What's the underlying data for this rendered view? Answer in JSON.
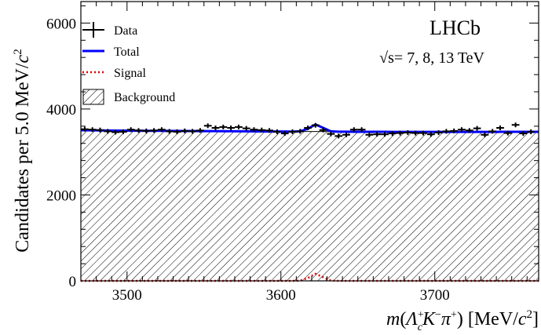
{
  "chart_data": {
    "type": "line",
    "title": "",
    "xlabel": "m(Λc+K−π+) [MeV/c²]",
    "ylabel": "Candidates per 5.0 MeV/c²",
    "xlim": [
      3470,
      3767.5
    ],
    "ylim": [
      0,
      6500
    ],
    "xticks": [
      3500,
      3600,
      3700
    ],
    "yticks": [
      0,
      2000,
      4000,
      6000
    ],
    "experiment_label": "LHCb",
    "energy_label": "√s= 7, 8, 13 TeV",
    "legend_position": "top-left",
    "bin_width": 5.0,
    "x": [
      3472.5,
      3477.5,
      3482.5,
      3487.5,
      3492.5,
      3497.5,
      3502.5,
      3507.5,
      3512.5,
      3517.5,
      3522.5,
      3527.5,
      3532.5,
      3537.5,
      3542.5,
      3547.5,
      3552.5,
      3557.5,
      3562.5,
      3567.5,
      3572.5,
      3577.5,
      3582.5,
      3587.5,
      3592.5,
      3597.5,
      3602.5,
      3607.5,
      3612.5,
      3617.5,
      3622.5,
      3627.5,
      3632.5,
      3637.5,
      3642.5,
      3647.5,
      3652.5,
      3657.5,
      3662.5,
      3667.5,
      3672.5,
      3677.5,
      3682.5,
      3687.5,
      3692.5,
      3697.5,
      3702.5,
      3707.5,
      3712.5,
      3717.5,
      3722.5,
      3727.5,
      3732.5,
      3737.5,
      3742.5,
      3747.5,
      3752.5,
      3757.5,
      3762.5
    ],
    "series": [
      {
        "name": "Data",
        "style": "points-with-errors",
        "color": "#000000",
        "values": [
          3530,
          3520,
          3510,
          3480,
          3460,
          3470,
          3520,
          3500,
          3490,
          3500,
          3520,
          3480,
          3470,
          3490,
          3480,
          3500,
          3610,
          3560,
          3580,
          3560,
          3580,
          3550,
          3520,
          3510,
          3500,
          3470,
          3430,
          3470,
          3480,
          3560,
          3620,
          3510,
          3420,
          3370,
          3400,
          3520,
          3520,
          3400,
          3410,
          3410,
          3430,
          3440,
          3450,
          3440,
          3440,
          3410,
          3450,
          3480,
          3490,
          3520,
          3500,
          3550,
          3400,
          3480,
          3560,
          3440,
          3630,
          3430,
          3470
        ],
        "error": 55
      },
      {
        "name": "Total",
        "style": "line",
        "color": "#0000ff",
        "values": [
          3505,
          3503,
          3501,
          3499,
          3497,
          3496,
          3495,
          3494,
          3493,
          3492,
          3491,
          3490,
          3489,
          3488,
          3487,
          3486,
          3485,
          3484,
          3483,
          3482,
          3481,
          3480,
          3479,
          3478,
          3477,
          3476,
          3475,
          3474,
          3480,
          3540,
          3640,
          3560,
          3480,
          3472,
          3471,
          3470,
          3469,
          3469,
          3468,
          3468,
          3467,
          3467,
          3467,
          3466,
          3466,
          3466,
          3466,
          3466,
          3466,
          3466,
          3467,
          3467,
          3467,
          3467,
          3468,
          3468,
          3468,
          3469,
          3469
        ]
      },
      {
        "name": "Signal",
        "style": "dotted",
        "color": "#e00000",
        "values": [
          0,
          0,
          0,
          0,
          0,
          0,
          0,
          0,
          0,
          0,
          0,
          0,
          0,
          0,
          0,
          0,
          0,
          0,
          0,
          0,
          0,
          0,
          0,
          0,
          0,
          0,
          0,
          0,
          6,
          65,
          165,
          85,
          8,
          0,
          0,
          0,
          0,
          0,
          0,
          0,
          0,
          0,
          0,
          0,
          0,
          0,
          0,
          0,
          0,
          0,
          0,
          0,
          0,
          0,
          0,
          0,
          0,
          0,
          0
        ]
      },
      {
        "name": "Background",
        "style": "hatched-area",
        "color": "#000000",
        "values": [
          3505,
          3503,
          3501,
          3499,
          3497,
          3496,
          3495,
          3494,
          3493,
          3492,
          3491,
          3490,
          3489,
          3488,
          3487,
          3486,
          3485,
          3484,
          3483,
          3482,
          3481,
          3480,
          3479,
          3478,
          3477,
          3476,
          3475,
          3474,
          3474,
          3475,
          3475,
          3475,
          3472,
          3472,
          3471,
          3470,
          3469,
          3469,
          3468,
          3468,
          3467,
          3467,
          3467,
          3466,
          3466,
          3466,
          3466,
          3466,
          3466,
          3466,
          3467,
          3467,
          3467,
          3467,
          3468,
          3468,
          3468,
          3469,
          3469
        ]
      }
    ]
  }
}
